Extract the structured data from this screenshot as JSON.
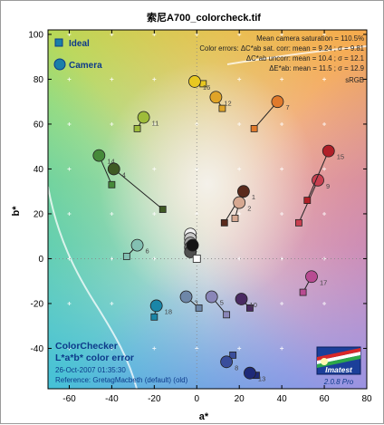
{
  "chart_data": {
    "type": "scatter",
    "title": "索尼A700_colorcheck.tif",
    "xlabel": "a*",
    "ylabel": "b*",
    "xlim": [
      -70,
      80
    ],
    "ylim": [
      -58,
      102
    ],
    "xticks": [
      "-60",
      "-40",
      "-20",
      "0",
      "20",
      "40",
      "60",
      "80"
    ],
    "yticks": [
      "100",
      "80",
      "60",
      "40",
      "20",
      "0",
      "-20",
      "-40"
    ],
    "legend": {
      "placement": "top-left",
      "ideal_label": "Ideal",
      "camera_label": "Camera"
    },
    "stats": {
      "line1": "Mean camera saturation = 110.5%",
      "line2": "Color errors: ΔC*ab sat. corr:  mean = 9.24 ;  σ = 9.81",
      "line3": "ΔC*ab uncorr:  mean = 10.4 ;  σ = 12.1",
      "line4": "ΔE*ab:  mean = 11.5 ;  σ = 12.9",
      "line5": "sRGB"
    },
    "footer": {
      "line1": "ColorChecker",
      "line2": "L*a*b* color error",
      "line3": "26-Oct-2007 01:35:30",
      "line4": "Reference: GretagMacbeth (default) (old)"
    },
    "logo": {
      "text": "Imatest",
      "version": "2.0.8  Pro"
    },
    "patches": [
      {
        "label": "1",
        "ideal": [
          13,
          16
        ],
        "camera": [
          22,
          30
        ],
        "color": "#5a2a1c"
      },
      {
        "label": "2",
        "ideal": [
          18,
          18
        ],
        "camera": [
          20,
          25
        ],
        "color": "#d6a891"
      },
      {
        "label": "3",
        "ideal": [
          1,
          -22
        ],
        "camera": [
          -5,
          -17
        ],
        "color": "#6e87a8"
      },
      {
        "label": "4",
        "ideal": [
          -16,
          22
        ],
        "camera": [
          -39,
          40
        ],
        "color": "#3f5a24"
      },
      {
        "label": "5",
        "ideal": [
          14,
          -25
        ],
        "camera": [
          7,
          -17
        ],
        "color": "#8a86b8"
      },
      {
        "label": "6",
        "ideal": [
          -33,
          1
        ],
        "camera": [
          -28,
          6
        ],
        "color": "#83c0b2"
      },
      {
        "label": "7",
        "ideal": [
          27,
          58
        ],
        "camera": [
          38,
          70
        ],
        "color": "#e07a2c"
      },
      {
        "label": "8",
        "ideal": [
          17,
          -43
        ],
        "camera": [
          14,
          -46
        ],
        "color": "#3a4e9c"
      },
      {
        "label": "9",
        "ideal": [
          48,
          16
        ],
        "camera": [
          57,
          35
        ],
        "color": "#c84050"
      },
      {
        "label": "10",
        "ideal": [
          25,
          -22
        ],
        "camera": [
          21,
          -18
        ],
        "color": "#4a2a62"
      },
      {
        "label": "11",
        "ideal": [
          -28,
          58
        ],
        "camera": [
          -25,
          63
        ],
        "color": "#9ebc3a"
      },
      {
        "label": "12",
        "ideal": [
          12,
          67
        ],
        "camera": [
          9,
          72
        ],
        "color": "#e0a428"
      },
      {
        "label": "13",
        "ideal": [
          28,
          -52
        ],
        "camera": [
          25,
          -51
        ],
        "color": "#1e2a78"
      },
      {
        "label": "14",
        "ideal": [
          -40,
          33
        ],
        "camera": [
          -46,
          46
        ],
        "color": "#468a3a"
      },
      {
        "label": "15",
        "ideal": [
          52,
          26
        ],
        "camera": [
          62,
          48
        ],
        "color": "#b02028"
      },
      {
        "label": "16",
        "ideal": [
          3,
          78
        ],
        "camera": [
          -1,
          79
        ],
        "color": "#e8c820"
      },
      {
        "label": "17",
        "ideal": [
          50,
          -15
        ],
        "camera": [
          54,
          -8
        ],
        "color": "#b84c92"
      },
      {
        "label": "18",
        "ideal": [
          -20,
          -26
        ],
        "camera": [
          -19,
          -21
        ],
        "color": "#1a86a8"
      },
      {
        "label": "",
        "ideal": [
          0,
          0
        ],
        "camera": [
          -3,
          11
        ],
        "color": "#f2f2f2"
      },
      {
        "label": "",
        "ideal": [
          0,
          0
        ],
        "camera": [
          -3,
          9
        ],
        "color": "#c8c8c8"
      },
      {
        "label": "",
        "ideal": [
          0,
          0
        ],
        "camera": [
          -3,
          7
        ],
        "color": "#a0a0a0"
      },
      {
        "label": "",
        "ideal": [
          0,
          0
        ],
        "camera": [
          -3,
          5
        ],
        "color": "#787878"
      },
      {
        "label": "",
        "ideal": [
          0,
          0
        ],
        "camera": [
          -3,
          3
        ],
        "color": "#505050"
      },
      {
        "label": "",
        "ideal": [
          0,
          0
        ],
        "camera": [
          -2,
          6
        ],
        "color": "#141414"
      }
    ]
  }
}
